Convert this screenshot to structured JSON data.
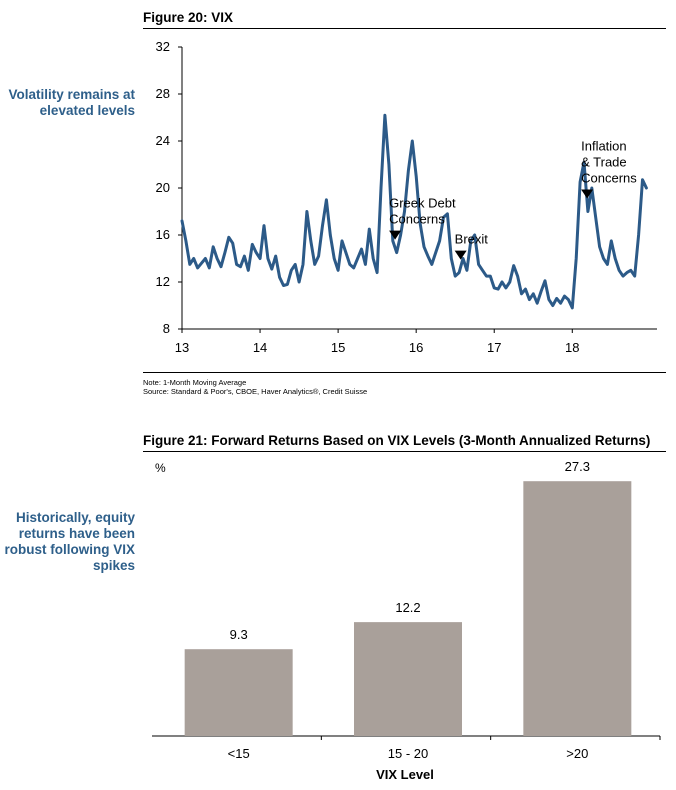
{
  "figure20": {
    "title": "Figure 20: VIX",
    "side_note": "Volatility remains at elevated levels",
    "note_line1": "Note: 1-Month Moving Average",
    "note_line2": "Source: Standard & Poor's, CBOE, Haver Analytics®, Credit Suisse"
  },
  "figure21": {
    "title": "Figure 21: Forward Returns Based on VIX Levels (3-Month Annualized Returns)",
    "side_note": "Historically, equity returns have been robust following VIX spikes"
  },
  "colors": {
    "line": "#2c5a88",
    "bar": "#a9a09a",
    "side_note": "#2e5f8a"
  },
  "chart_data": [
    {
      "type": "line",
      "title": "",
      "xlabel": "",
      "ylabel": "",
      "xlim": [
        13.0,
        18.97
      ],
      "ylim": [
        8,
        32
      ],
      "yticks": [
        8,
        12,
        16,
        20,
        24,
        28,
        32
      ],
      "xticks": [
        "13",
        "14",
        "15",
        "16",
        "17",
        "18"
      ],
      "grid": false,
      "series": [
        {
          "x": [
            13.0,
            13.05,
            13.1,
            13.15,
            13.2,
            13.25,
            13.3,
            13.35,
            13.4,
            13.45,
            13.5,
            13.55,
            13.6,
            13.65,
            13.7,
            13.75,
            13.8,
            13.85,
            13.9,
            13.95,
            14.0,
            14.05,
            14.1,
            14.15,
            14.2,
            14.25,
            14.3,
            14.35,
            14.4,
            14.45,
            14.5,
            14.55,
            14.6,
            14.65,
            14.7,
            14.75,
            14.8,
            14.85,
            14.9,
            14.95,
            15.0,
            15.05,
            15.1,
            15.15,
            15.2,
            15.25,
            15.3,
            15.35,
            15.4,
            15.45,
            15.5,
            15.55,
            15.6,
            15.65,
            15.7,
            15.75,
            15.8,
            15.85,
            15.9,
            15.95,
            16.0,
            16.05,
            16.1,
            16.15,
            16.2,
            16.25,
            16.3,
            16.35,
            16.4,
            16.45,
            16.5,
            16.55,
            16.6,
            16.65,
            16.7,
            16.75,
            16.8,
            16.85,
            16.9,
            16.95,
            17.0,
            17.05,
            17.1,
            17.15,
            17.2,
            17.25,
            17.3,
            17.35,
            17.4,
            17.45,
            17.5,
            17.55,
            17.6,
            17.65,
            17.7,
            17.75,
            17.8,
            17.85,
            17.9,
            17.95,
            18.0,
            18.05,
            18.1,
            18.15,
            18.2,
            18.25,
            18.3,
            18.35,
            18.4,
            18.45,
            18.5,
            18.55,
            18.6,
            18.65,
            18.7,
            18.75,
            18.8,
            18.85,
            18.9,
            18.95
          ],
          "values": [
            17.2,
            15.5,
            13.5,
            14.0,
            13.2,
            13.6,
            14.0,
            13.2,
            15.0,
            14.0,
            13.3,
            14.5,
            15.8,
            15.3,
            13.5,
            13.3,
            14.2,
            13.0,
            15.2,
            14.5,
            14.0,
            16.8,
            14.0,
            13.1,
            14.2,
            12.4,
            11.7,
            11.8,
            13.0,
            13.5,
            12.0,
            13.5,
            18.0,
            15.5,
            13.5,
            14.2,
            16.8,
            19.0,
            16.0,
            14.0,
            13.0,
            15.5,
            14.5,
            13.5,
            13.2,
            14.0,
            14.8,
            13.5,
            16.5,
            14.0,
            12.8,
            20.0,
            26.2,
            22.0,
            15.5,
            14.5,
            16.0,
            18.0,
            21.5,
            24.0,
            21.0,
            17.0,
            15.0,
            14.2,
            13.5,
            14.5,
            15.5,
            17.5,
            17.8,
            14.0,
            12.5,
            12.8,
            14.0,
            13.0,
            15.5,
            16.0,
            13.5,
            13.0,
            12.5,
            12.5,
            11.5,
            11.4,
            12.0,
            11.5,
            12.0,
            13.4,
            12.5,
            11.0,
            11.4,
            10.5,
            11.0,
            10.2,
            11.2,
            12.1,
            10.5,
            10.0,
            10.6,
            10.2,
            10.8,
            10.5,
            9.8,
            14.0,
            20.5,
            22.2,
            18.0,
            20.0,
            17.5,
            15.0,
            14.0,
            13.5,
            15.5,
            14.0,
            13.0,
            12.5,
            12.8,
            13.0,
            12.5,
            16.0,
            20.7,
            20.0
          ]
        }
      ],
      "annotations": [
        {
          "text": "Greek Debt Concerns",
          "lines": [
            "Greek Debt",
            "Concerns"
          ],
          "x": 15.73
        },
        {
          "text": "Brexit",
          "lines": [
            "Brexit"
          ],
          "x": 16.57
        },
        {
          "text": "Inflation & Trade Concerns",
          "lines": [
            "Inflation",
            "& Trade",
            "Concerns"
          ],
          "x": 18.19
        }
      ]
    },
    {
      "type": "bar",
      "title": "",
      "xlabel": "VIX Level",
      "ylabel": "%",
      "ylim": [
        0,
        30
      ],
      "grid": false,
      "categories": [
        "<15",
        "15 - 20",
        ">20"
      ],
      "series": [
        {
          "values": [
            9.3,
            12.2,
            27.3
          ]
        }
      ]
    }
  ]
}
